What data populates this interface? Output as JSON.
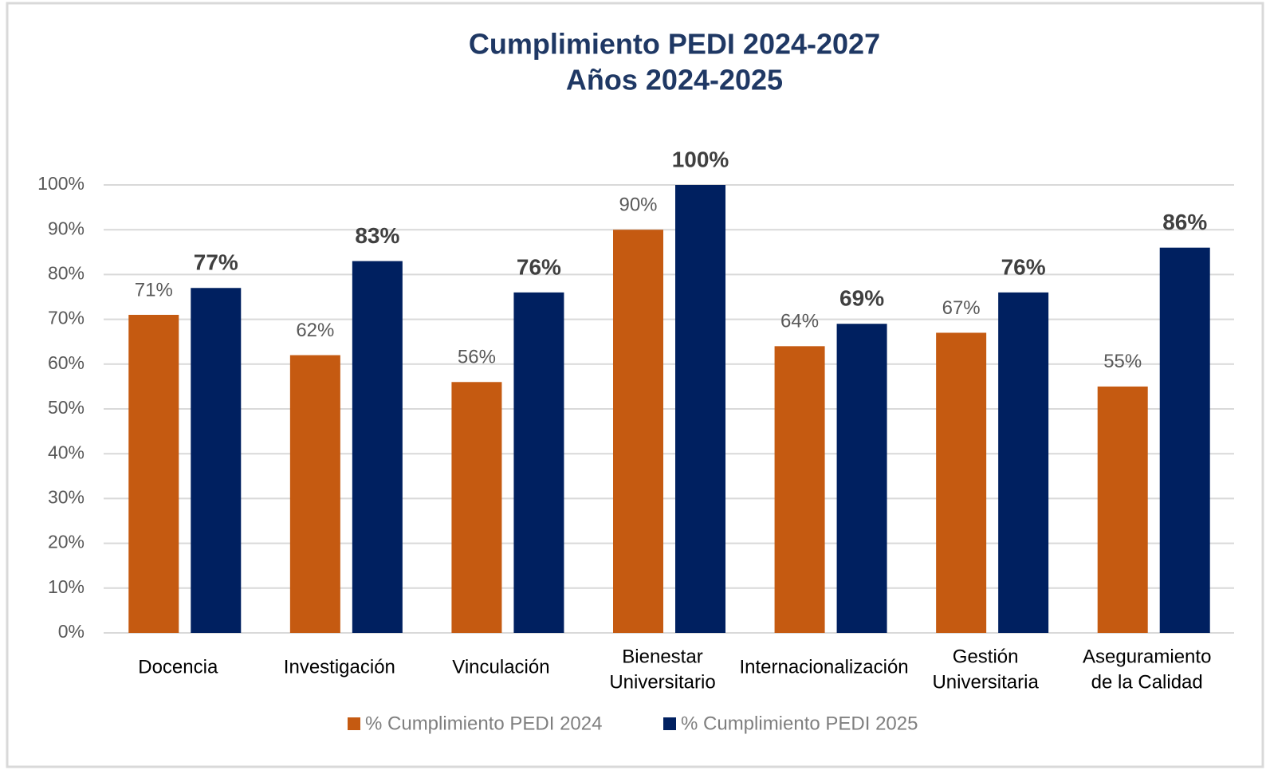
{
  "chart_data": {
    "type": "bar",
    "title": "Cumplimiento  PEDI 2024-2027",
    "subtitle": "Años 2024-2025",
    "categories": [
      [
        "Docencia"
      ],
      [
        "Investigación"
      ],
      [
        "Vinculación"
      ],
      [
        "Bienestar",
        "Universitario"
      ],
      [
        "Internacionalización"
      ],
      [
        "Gestión",
        "Universitaria"
      ],
      [
        "Aseguramiento",
        "de la Calidad"
      ]
    ],
    "series": [
      {
        "name": "% Cumplimiento PEDI 2024",
        "color": "#c55a11",
        "values": [
          71,
          62,
          56,
          90,
          64,
          67,
          55
        ],
        "value_labels": [
          "71%",
          "62%",
          "56%",
          "90%",
          "64%",
          "67%",
          "55%"
        ]
      },
      {
        "name": "% Cumplimiento PEDI 2025",
        "color": "#002060",
        "values": [
          77,
          83,
          76,
          100,
          69,
          76,
          86
        ],
        "value_labels": [
          "77%",
          "83%",
          "76%",
          "100%",
          "69%",
          "76%",
          "86%"
        ]
      }
    ],
    "ylim": [
      0,
      100
    ],
    "yticks": [
      {
        "value": 0,
        "label": "0%"
      },
      {
        "value": 10,
        "label": "10%"
      },
      {
        "value": 20,
        "label": "20%"
      },
      {
        "value": 30,
        "label": "30%"
      },
      {
        "value": 40,
        "label": "40%"
      },
      {
        "value": 50,
        "label": "50%"
      },
      {
        "value": 60,
        "label": "60%"
      },
      {
        "value": 70,
        "label": "70%"
      },
      {
        "value": 80,
        "label": "80%"
      },
      {
        "value": 90,
        "label": "90%"
      },
      {
        "value": 100,
        "label": "100%"
      }
    ],
    "grid": true,
    "legend": "bottom"
  }
}
